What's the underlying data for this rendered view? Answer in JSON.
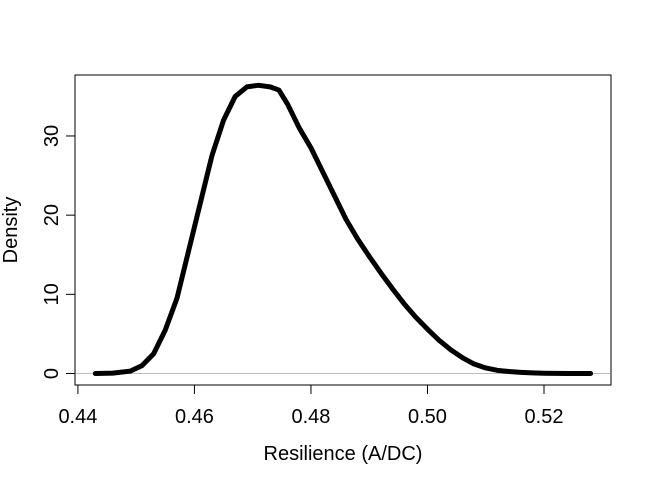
{
  "chart_data": {
    "type": "line",
    "title": "",
    "xlabel": "Resilience (A/DC)",
    "ylabel": "Density",
    "xlim": [
      0.4395,
      0.5315
    ],
    "ylim": [
      -1.45,
      37.7
    ],
    "x_ticks": [
      0.44,
      0.46,
      0.48,
      0.5,
      0.52
    ],
    "x_tick_labels": [
      "0.44",
      "0.46",
      "0.48",
      "0.50",
      "0.52"
    ],
    "y_ticks": [
      0,
      10,
      20,
      30
    ],
    "y_tick_labels": [
      "0",
      "10",
      "20",
      "30"
    ],
    "grid": false,
    "baseline": {
      "y": 0,
      "color": "#bebebe"
    },
    "series": [
      {
        "color": "#000000",
        "x": [
          0.443,
          0.446,
          0.449,
          0.451,
          0.453,
          0.455,
          0.457,
          0.459,
          0.461,
          0.463,
          0.465,
          0.467,
          0.469,
          0.471,
          0.473,
          0.4745,
          0.476,
          0.478,
          0.48,
          0.482,
          0.484,
          0.486,
          0.488,
          0.49,
          0.492,
          0.494,
          0.496,
          0.498,
          0.5,
          0.502,
          0.504,
          0.506,
          0.508,
          0.51,
          0.512,
          0.514,
          0.516,
          0.518,
          0.52,
          0.522,
          0.524,
          0.526,
          0.528
        ],
        "y": [
          0.0,
          0.05,
          0.3,
          1.0,
          2.5,
          5.5,
          9.5,
          15.5,
          21.5,
          27.5,
          32.0,
          35.0,
          36.2,
          36.4,
          36.2,
          35.8,
          34.0,
          31.0,
          28.5,
          25.5,
          22.5,
          19.5,
          17.0,
          14.8,
          12.7,
          10.7,
          8.8,
          7.1,
          5.6,
          4.2,
          3.0,
          2.0,
          1.2,
          0.7,
          0.4,
          0.25,
          0.15,
          0.08,
          0.04,
          0.02,
          0.01,
          0.0,
          0.0
        ]
      }
    ]
  }
}
